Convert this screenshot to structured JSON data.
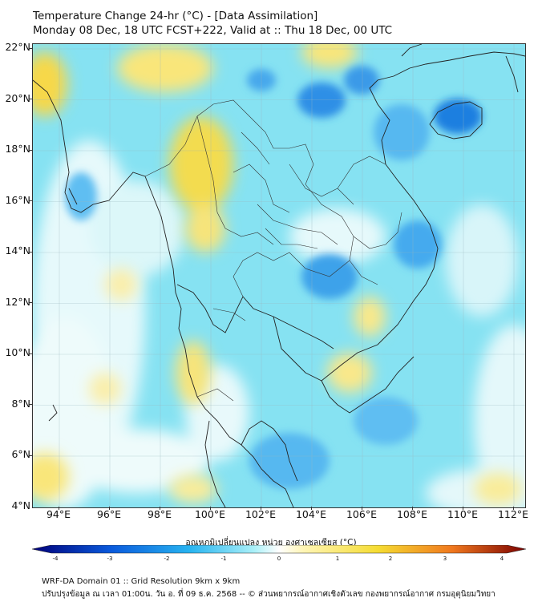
{
  "header": {
    "title_line1": "Temperature Change 24-hr (°C) - [Data Assimilation]",
    "title_line2": "Monday 08 Dec, 18 UTC FCST+222, Valid at :: Thu 18 Dec, 00 UTC"
  },
  "map": {
    "variable": "24-hr temperature change",
    "units": "°C",
    "lat_labels": [
      "22°N",
      "20°N",
      "18°N",
      "16°N",
      "14°N",
      "12°N",
      "10°N",
      "8°N",
      "6°N",
      "4°N"
    ],
    "lon_labels": [
      "94°E",
      "96°E",
      "98°E",
      "100°E",
      "102°E",
      "104°E",
      "106°E",
      "108°E",
      "110°E",
      "112°E"
    ],
    "extent": {
      "lon_min": 93,
      "lon_max": 112.4,
      "lat_min": 4,
      "lat_max": 22.2
    }
  },
  "colorbar": {
    "label": "อุณหภูมิเปลี่ยนแปลง หน่วย องศาเซลเซียส (°C)",
    "ticks": [
      "-4",
      "-3",
      "-2",
      "-1",
      "0",
      "1",
      "2",
      "3",
      "4"
    ],
    "min": -4,
    "max": 4,
    "colors": {
      "cold_extreme": "#00007a",
      "cold": "#0a5adc",
      "cool": "#28b4f0",
      "slight_cool": "#aaf0f8",
      "neutral": "#ffffff",
      "slight_warm": "#fff5b4",
      "warm": "#f5dc32",
      "hot": "#f0781e",
      "hot_extreme": "#7a0000"
    }
  },
  "footer": {
    "line1": "WRF-DA Domain 01 :: Grid Resolution 9km x 9km",
    "line2": "ปรับปรุงข้อมูล ณ เวลา 01:00น. วัน อ. ที่ 09 ธ.ค. 2568 -- © ส่วนพยากรณ์อากาศเชิงตัวเลข กองพยากรณ์อากาศ กรมอุตุนิยมวิทยา"
  }
}
